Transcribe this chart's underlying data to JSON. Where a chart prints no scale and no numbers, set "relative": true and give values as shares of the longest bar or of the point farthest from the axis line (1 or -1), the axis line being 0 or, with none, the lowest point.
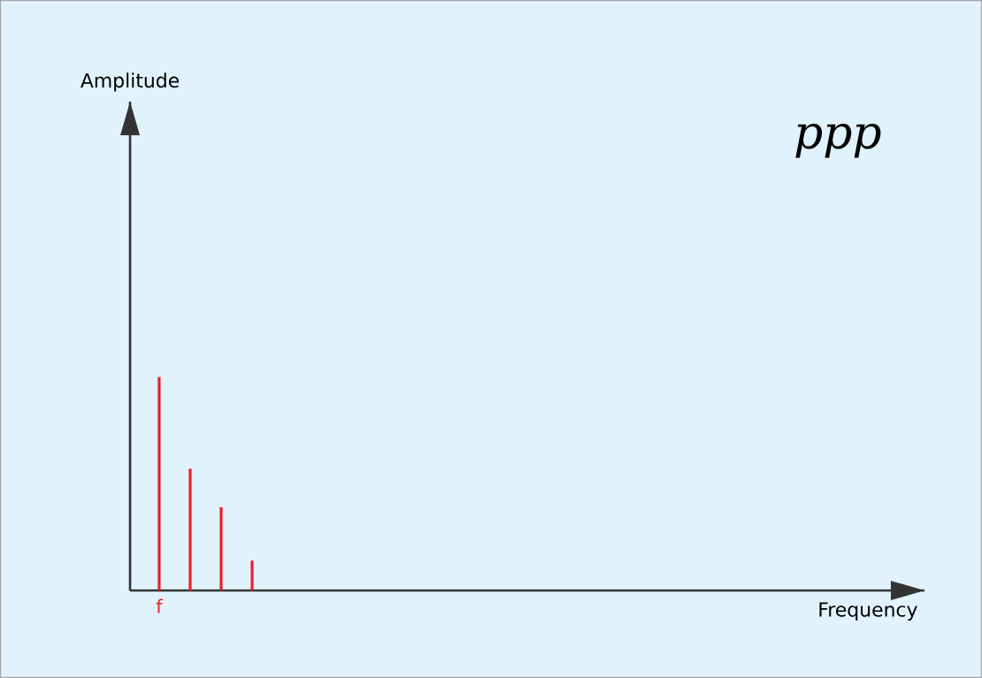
{
  "chart_data": {
    "type": "bar",
    "relative": true,
    "categories": [
      "f",
      null,
      null,
      null
    ],
    "values": [
      1,
      0.57,
      0.39,
      0.14
    ],
    "color": "#e8202a",
    "annotations": [
      "Amplitude",
      "Frequency",
      "ppp"
    ]
  }
}
